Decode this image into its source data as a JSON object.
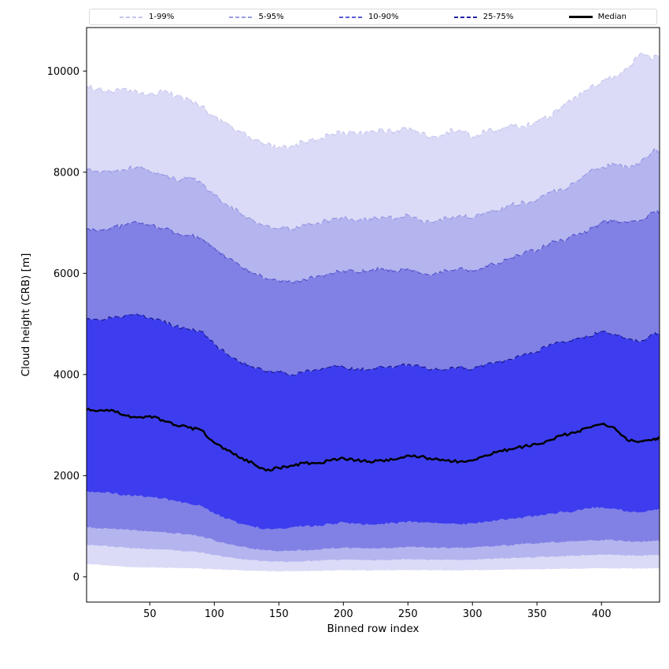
{
  "figure": {
    "xlabel": "Binned row index",
    "ylabel": "Cloud height (CRB) [m]"
  },
  "legend": {
    "entries": [
      {
        "label": "1-99%",
        "color": "#c6c6f0",
        "style": "dashed"
      },
      {
        "label": "5-95%",
        "color": "#9a9ae6",
        "style": "dashed"
      },
      {
        "label": "10-90%",
        "color": "#5b5bd6",
        "style": "dashed"
      },
      {
        "label": "25-75%",
        "color": "#2424a8",
        "style": "dashed"
      },
      {
        "label": "Median",
        "color": "#000000",
        "style": "solid"
      }
    ]
  },
  "chart_data": {
    "type": "area",
    "title": "",
    "xlabel": "Binned row index",
    "ylabel": "Cloud height (CRB) [m]",
    "xlim": [
      1,
      445
    ],
    "ylim": [
      -500,
      10860
    ],
    "xticks": [
      50,
      100,
      150,
      200,
      250,
      300,
      350,
      400
    ],
    "yticks": [
      0,
      2000,
      4000,
      6000,
      8000,
      10000
    ],
    "grid": false,
    "legend_position": "top",
    "x": [
      1,
      10,
      20,
      30,
      40,
      50,
      60,
      70,
      80,
      90,
      100,
      110,
      120,
      130,
      140,
      150,
      160,
      170,
      180,
      190,
      200,
      210,
      220,
      230,
      240,
      250,
      260,
      270,
      280,
      290,
      300,
      310,
      320,
      330,
      340,
      350,
      360,
      370,
      380,
      390,
      400,
      410,
      420,
      430,
      440,
      445
    ],
    "bands": [
      {
        "label": "1-99%",
        "lower": "q01",
        "upper": "q99",
        "fill": "#dbdbf7",
        "edge": "#c4c4ee"
      },
      {
        "label": "5-95%",
        "lower": "q05",
        "upper": "q95",
        "fill": "#b4b4ef",
        "edge": "#9393e3"
      },
      {
        "label": "10-90%",
        "lower": "q10",
        "upper": "q90",
        "fill": "#8181e5",
        "edge": "#4d4dc9"
      },
      {
        "label": "25-75%",
        "lower": "q25",
        "upper": "q75",
        "fill": "#3d3def",
        "edge": "#15158a"
      }
    ],
    "median": {
      "series": "median",
      "color": "#000000",
      "width": 2.5,
      "label": "Median"
    },
    "series": {
      "q01": [
        250,
        240,
        220,
        200,
        190,
        185,
        180,
        175,
        170,
        165,
        150,
        140,
        130,
        120,
        115,
        110,
        110,
        115,
        120,
        125,
        130,
        128,
        126,
        128,
        130,
        135,
        132,
        130,
        128,
        128,
        130,
        135,
        140,
        145,
        148,
        150,
        155,
        158,
        160,
        165,
        170,
        168,
        165,
        163,
        168,
        170
      ],
      "q05": [
        640,
        620,
        600,
        580,
        560,
        550,
        540,
        520,
        500,
        480,
        430,
        390,
        360,
        330,
        310,
        300,
        300,
        310,
        320,
        330,
        340,
        335,
        330,
        335,
        340,
        350,
        345,
        340,
        335,
        335,
        340,
        350,
        360,
        370,
        380,
        390,
        400,
        410,
        420,
        430,
        440,
        435,
        425,
        420,
        430,
        435
      ],
      "q10": [
        980,
        960,
        950,
        930,
        920,
        900,
        880,
        860,
        840,
        800,
        720,
        650,
        600,
        560,
        520,
        510,
        520,
        530,
        540,
        560,
        580,
        570,
        560,
        570,
        580,
        600,
        590,
        580,
        570,
        570,
        580,
        600,
        610,
        630,
        650,
        660,
        680,
        690,
        700,
        720,
        730,
        720,
        700,
        690,
        710,
        720
      ],
      "q25": [
        1700,
        1680,
        1650,
        1620,
        1600,
        1580,
        1550,
        1500,
        1450,
        1400,
        1250,
        1150,
        1050,
        1000,
        950,
        960,
        980,
        1000,
        1000,
        1050,
        1080,
        1050,
        1030,
        1050,
        1060,
        1100,
        1080,
        1060,
        1050,
        1040,
        1060,
        1100,
        1120,
        1150,
        1180,
        1200,
        1250,
        1280,
        1300,
        1350,
        1380,
        1350,
        1300,
        1280,
        1320,
        1340
      ],
      "median": [
        3300,
        3280,
        3300,
        3200,
        3150,
        3180,
        3100,
        3000,
        2950,
        2900,
        2650,
        2500,
        2350,
        2250,
        2100,
        2150,
        2200,
        2250,
        2250,
        2300,
        2350,
        2300,
        2280,
        2300,
        2320,
        2400,
        2380,
        2320,
        2300,
        2280,
        2300,
        2400,
        2480,
        2520,
        2580,
        2620,
        2700,
        2800,
        2850,
        2950,
        3020,
        2950,
        2700,
        2680,
        2720,
        2750
      ],
      "q75": [
        5100,
        5080,
        5120,
        5150,
        5200,
        5120,
        5050,
        4950,
        4900,
        4850,
        4600,
        4400,
        4250,
        4150,
        4050,
        4050,
        4000,
        4050,
        4100,
        4150,
        4150,
        4100,
        4100,
        4150,
        4150,
        4200,
        4150,
        4100,
        4100,
        4150,
        4100,
        4200,
        4250,
        4300,
        4400,
        4450,
        4600,
        4650,
        4700,
        4750,
        4850,
        4800,
        4700,
        4650,
        4800,
        4820
      ],
      "q90": [
        6880,
        6850,
        6900,
        6950,
        7020,
        6950,
        6900,
        6800,
        6750,
        6700,
        6500,
        6300,
        6150,
        6000,
        5900,
        5850,
        5820,
        5880,
        5950,
        6000,
        6050,
        6020,
        6050,
        6100,
        6050,
        6100,
        6000,
        5980,
        6050,
        6100,
        6050,
        6150,
        6200,
        6300,
        6400,
        6450,
        6600,
        6650,
        6750,
        6850,
        7000,
        7050,
        7000,
        7050,
        7200,
        7220
      ],
      "q95": [
        8050,
        8020,
        8000,
        8050,
        8100,
        8000,
        7950,
        7850,
        7900,
        7800,
        7550,
        7350,
        7200,
        7050,
        6950,
        6900,
        6880,
        6950,
        7000,
        7050,
        7100,
        7050,
        7080,
        7120,
        7080,
        7150,
        7050,
        7000,
        7100,
        7150,
        7100,
        7200,
        7250,
        7350,
        7400,
        7450,
        7600,
        7650,
        7800,
        8000,
        8100,
        8150,
        8100,
        8200,
        8420,
        8440
      ],
      "q99": [
        9700,
        9650,
        9600,
        9650,
        9600,
        9550,
        9600,
        9500,
        9450,
        9300,
        9100,
        8950,
        8800,
        8650,
        8550,
        8500,
        8520,
        8600,
        8650,
        8750,
        8800,
        8750,
        8800,
        8850,
        8800,
        8850,
        8750,
        8700,
        8800,
        8850,
        8700,
        8800,
        8850,
        8950,
        8900,
        9000,
        9100,
        9300,
        9500,
        9650,
        9800,
        9900,
        10050,
        10350,
        10250,
        10300
      ]
    }
  }
}
